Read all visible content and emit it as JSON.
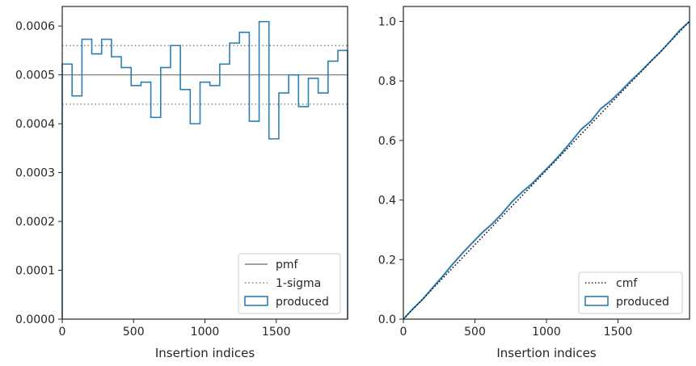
{
  "chart_data": [
    {
      "type": "histogram-step",
      "xlabel": "Insertion indices",
      "ylabel": "",
      "xlim": [
        0,
        2000
      ],
      "ylim": [
        0,
        0.00064
      ],
      "xticks": [
        0,
        500,
        1000,
        1500
      ],
      "xtick_labels": [
        "0",
        "500",
        "1000",
        "1500"
      ],
      "yticks": [
        0,
        0.0001,
        0.0002,
        0.0003,
        0.0004,
        0.0005,
        0.0006
      ],
      "ytick_labels": [
        "0.0000",
        "0.0001",
        "0.0002",
        "0.0003",
        "0.0004",
        "0.0005",
        "0.0006"
      ],
      "grid": false,
      "legend_position": "bottom-right",
      "pmf": {
        "name": "pmf",
        "value": 0.0005,
        "color": "#808080"
      },
      "sigma": {
        "name": "1-sigma",
        "values": [
          0.00056,
          0.00044
        ],
        "color": "#808080"
      },
      "produced": {
        "name": "produced",
        "color": "#2f7fb0",
        "bin_edges": [
          0,
          69,
          138,
          207,
          276,
          345,
          414,
          483,
          552,
          621,
          690,
          759,
          828,
          897,
          966,
          1035,
          1104,
          1173,
          1242,
          1311,
          1380,
          1449,
          1518,
          1587,
          1656,
          1725,
          1794,
          1863,
          1932,
          2000
        ],
        "values": [
          0.000522,
          0.000457,
          0.000573,
          0.000543,
          0.000573,
          0.000537,
          0.000515,
          0.000478,
          0.000485,
          0.000413,
          0.000515,
          0.00056,
          0.00047,
          0.0004,
          0.000485,
          0.000478,
          0.000522,
          0.000565,
          0.000587,
          0.000405,
          0.000609,
          0.000369,
          0.000463,
          0.0005,
          0.000435,
          0.000493,
          0.000463,
          0.000528,
          0.00055
        ]
      }
    },
    {
      "type": "line",
      "xlabel": "Insertion indices",
      "ylabel": "",
      "xlim": [
        0,
        2000
      ],
      "ylim": [
        0,
        1.05
      ],
      "xticks": [
        0,
        500,
        1000,
        1500
      ],
      "xtick_labels": [
        "0",
        "500",
        "1000",
        "1500"
      ],
      "yticks": [
        0,
        0.2,
        0.4,
        0.6,
        0.8,
        1.0
      ],
      "ytick_labels": [
        "0.0",
        "0.2",
        "0.4",
        "0.6",
        "0.8",
        "1.0"
      ],
      "grid": false,
      "legend_position": "bottom-right",
      "series": [
        {
          "name": "cmf",
          "style": "dotted",
          "color": "#000000",
          "x": [
            0,
            2000
          ],
          "y": [
            0,
            1
          ]
        },
        {
          "name": "produced",
          "style": "solid",
          "color": "#2f7fb0",
          "x": [
            0,
            69,
            138,
            207,
            276,
            345,
            414,
            483,
            552,
            621,
            690,
            759,
            828,
            897,
            966,
            1035,
            1104,
            1173,
            1242,
            1311,
            1380,
            1449,
            1518,
            1587,
            1656,
            1725,
            1794,
            1863,
            1932,
            2000
          ],
          "y": [
            0,
            0.036,
            0.068,
            0.107,
            0.145,
            0.185,
            0.222,
            0.257,
            0.291,
            0.32,
            0.355,
            0.394,
            0.426,
            0.454,
            0.488,
            0.521,
            0.557,
            0.596,
            0.637,
            0.665,
            0.707,
            0.733,
            0.765,
            0.799,
            0.83,
            0.864,
            0.896,
            0.932,
            0.97,
            1.0
          ]
        }
      ]
    }
  ]
}
